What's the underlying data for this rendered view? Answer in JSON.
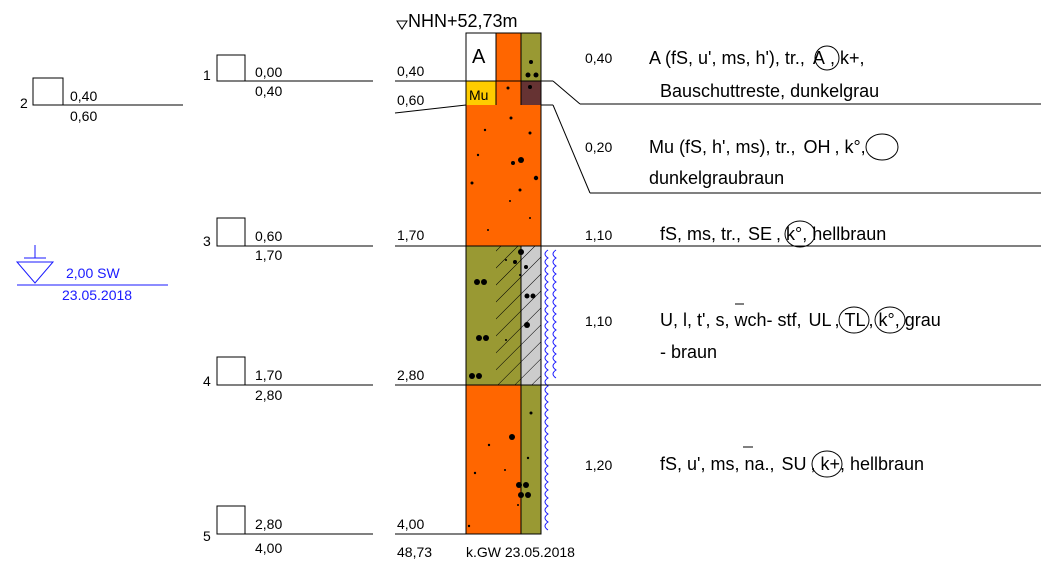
{
  "header": {
    "elevation_label": "NHN+52,73m"
  },
  "samples": [
    {
      "no": "1",
      "top": "0,00",
      "bottom": "0,40"
    },
    {
      "no": "2",
      "top": "0,40",
      "bottom": "0,60"
    },
    {
      "no": "3",
      "top": "0,60",
      "bottom": "1,70"
    },
    {
      "no": "4",
      "top": "1,70",
      "bottom": "2,80"
    },
    {
      "no": "5",
      "top": "2,80",
      "bottom": "4,00"
    }
  ],
  "groundwater": {
    "depth_label": "2,00 SW",
    "date": "23.05.2018"
  },
  "depth_marks": [
    "0,40",
    "0,60",
    "1,70",
    "2,80",
    "4,00"
  ],
  "bottom": {
    "elevation": "48,73",
    "note": "k.GW 23.05.2018"
  },
  "layers": [
    {
      "symbol": "A",
      "thickness": "0,40",
      "line1_pre": "A (fS, u', ms, h'), tr., ",
      "circle1": "A",
      "line1_post": ", k+,",
      "line2": "Bauschuttreste, dunkelgrau"
    },
    {
      "symbol": "Mu",
      "thickness": "0,20",
      "line1_pre": "Mu (fS, h', ms), tr., ",
      "circle1": "OH",
      "line1_post": ", k°,",
      "line2": "dunkelgraubraun"
    },
    {
      "thickness": "1,10",
      "line1_pre": "fS, ms, tr., ",
      "circle1": "SE",
      "line1_post": ", k°, hellbraun"
    },
    {
      "thickness": "1,10",
      "line1_pre": "U, l, t', ",
      "overbar1": "s",
      "line1_mid": ", wch- stf, ",
      "circle1": "UL",
      "line1_sep": ",",
      "circle2": "TL",
      "line1_post": ", k°, grau",
      "line2": "- braun"
    },
    {
      "thickness": "1,20",
      "line1_pre": "fS, u', m",
      "overbar1": "s",
      "line1_mid": ", na., ",
      "circle1": "SU",
      "line1_post": ", k+, hellbraun"
    }
  ],
  "colors": {
    "orange": "#ff6600",
    "olive": "#999933",
    "yellow": "#ffcc00",
    "brown": "#663333",
    "groundwater_blue": "#1a1aff"
  }
}
